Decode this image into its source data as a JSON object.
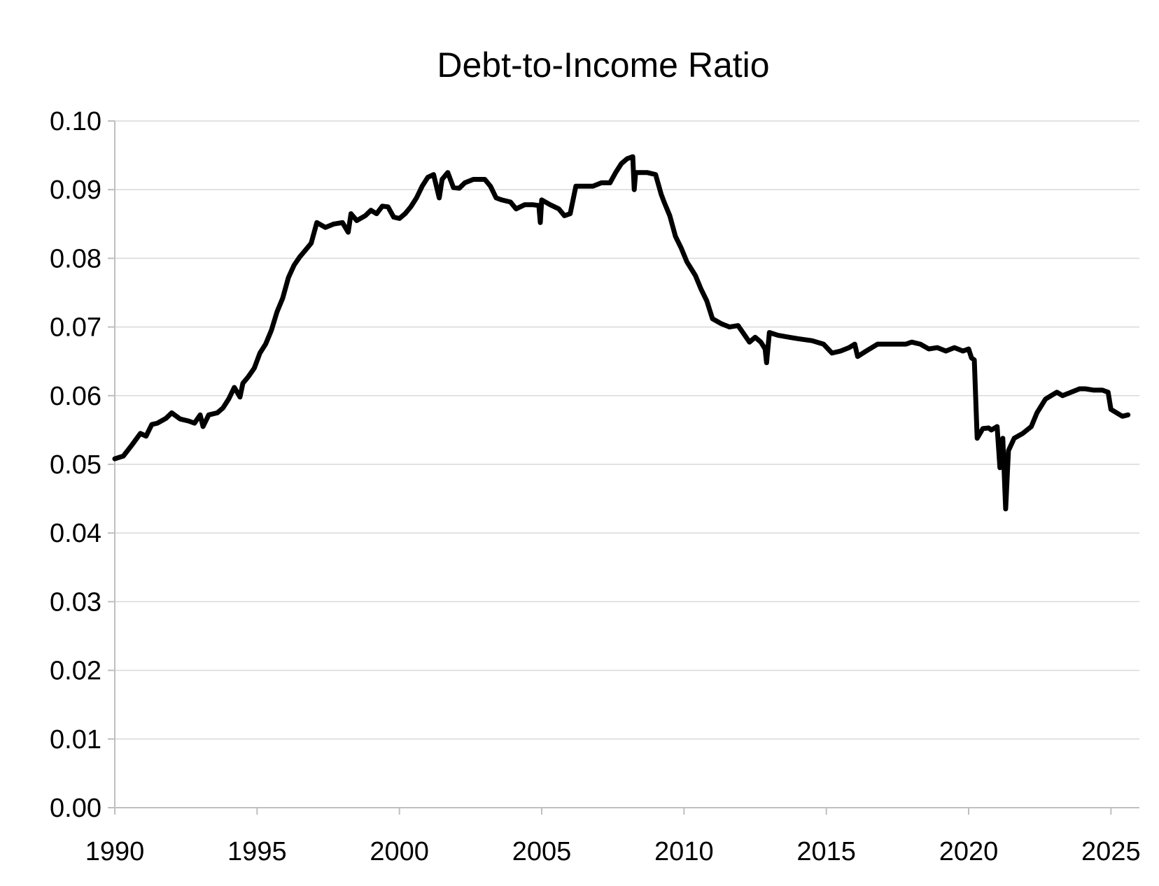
{
  "chart_data": {
    "type": "line",
    "title": "Debt-to-Income Ratio",
    "xlabel": "",
    "ylabel": "",
    "xlim": [
      1990,
      2026
    ],
    "ylim": [
      0,
      0.1
    ],
    "x_ticks": [
      "1990",
      "1995",
      "2000",
      "2005",
      "2010",
      "2015",
      "2020",
      "2025"
    ],
    "x_tick_values": [
      1990,
      1995,
      2000,
      2005,
      2010,
      2015,
      2020,
      2025
    ],
    "y_ticks": [
      "0.00",
      "0.01",
      "0.02",
      "0.03",
      "0.04",
      "0.05",
      "0.06",
      "0.07",
      "0.08",
      "0.09",
      "0.10"
    ],
    "y_tick_values": [
      0.0,
      0.01,
      0.02,
      0.03,
      0.04,
      0.05,
      0.06,
      0.07,
      0.08,
      0.09,
      0.1
    ],
    "grid": "horizontal",
    "legend": "none",
    "colors": {
      "line": "#000000",
      "grid": "#d9d9d9",
      "axis": "#bfbfbf"
    },
    "series": [
      {
        "x": [
          1990.0,
          1990.3,
          1990.6,
          1990.9,
          1991.1,
          1991.3,
          1991.5,
          1991.8,
          1992.0,
          1992.3,
          1992.6,
          1992.8,
          1993.0,
          1993.1,
          1993.3,
          1993.6,
          1993.8,
          1994.0,
          1994.2,
          1994.4,
          1994.5,
          1994.7,
          1994.9,
          1995.1,
          1995.3,
          1995.5,
          1995.7,
          1995.9,
          1996.1,
          1996.3,
          1996.5,
          1996.7,
          1996.9,
          1997.1,
          1997.4,
          1997.7,
          1998.0,
          1998.2,
          1998.3,
          1998.5,
          1998.8,
          1999.0,
          1999.2,
          1999.4,
          1999.6,
          1999.8,
          2000.0,
          2000.2,
          2000.4,
          2000.6,
          2000.8,
          2001.0,
          2001.2,
          2001.4,
          2001.5,
          2001.7,
          2001.9,
          2002.1,
          2002.3,
          2002.6,
          2003.0,
          2003.2,
          2003.4,
          2003.6,
          2003.9,
          2004.1,
          2004.4,
          2004.7,
          2004.9,
          2004.95,
          2005.0,
          2005.3,
          2005.6,
          2005.8,
          2006.0,
          2006.2,
          2006.4,
          2006.8,
          2007.1,
          2007.4,
          2007.6,
          2007.8,
          2008.0,
          2008.2,
          2008.25,
          2008.3,
          2008.5,
          2008.7,
          2009.0,
          2009.2,
          2009.3,
          2009.5,
          2009.7,
          2009.9,
          2010.1,
          2010.4,
          2010.6,
          2010.8,
          2011.0,
          2011.3,
          2011.6,
          2011.9,
          2012.1,
          2012.3,
          2012.5,
          2012.7,
          2012.85,
          2012.9,
          2013.0,
          2013.3,
          2013.7,
          2014.0,
          2014.5,
          2014.9,
          2015.2,
          2015.5,
          2015.8,
          2016.0,
          2016.1,
          2016.4,
          2016.8,
          2017.2,
          2017.5,
          2017.8,
          2018.0,
          2018.3,
          2018.6,
          2018.9,
          2019.2,
          2019.5,
          2019.8,
          2020.0,
          2020.1,
          2020.2,
          2020.3,
          2020.5,
          2020.7,
          2020.8,
          2021.0,
          2021.1,
          2021.2,
          2021.3,
          2021.4,
          2021.6,
          2021.9,
          2022.2,
          2022.4,
          2022.7,
          2022.9,
          2023.1,
          2023.3,
          2023.6,
          2023.9,
          2024.1,
          2024.4,
          2024.7,
          2024.9,
          2025.0,
          2025.2,
          2025.4,
          2025.6
        ],
        "y": [
          0.0508,
          0.0512,
          0.0528,
          0.0545,
          0.0541,
          0.0558,
          0.056,
          0.0567,
          0.0575,
          0.0566,
          0.0563,
          0.056,
          0.0572,
          0.0555,
          0.0572,
          0.0575,
          0.0582,
          0.0595,
          0.0612,
          0.0598,
          0.0618,
          0.0628,
          0.064,
          0.0662,
          0.0675,
          0.0695,
          0.0722,
          0.0742,
          0.0772,
          0.079,
          0.0802,
          0.0812,
          0.0822,
          0.0852,
          0.0845,
          0.085,
          0.0852,
          0.0838,
          0.0865,
          0.0855,
          0.0862,
          0.087,
          0.0865,
          0.0876,
          0.0875,
          0.086,
          0.0858,
          0.0865,
          0.0875,
          0.0888,
          0.0905,
          0.0918,
          0.0922,
          0.0888,
          0.0915,
          0.0925,
          0.0903,
          0.0902,
          0.091,
          0.0915,
          0.0915,
          0.0905,
          0.0888,
          0.0885,
          0.0882,
          0.0872,
          0.0878,
          0.0878,
          0.0877,
          0.0852,
          0.0885,
          0.0878,
          0.0872,
          0.0862,
          0.0865,
          0.0905,
          0.0905,
          0.0905,
          0.091,
          0.091,
          0.0925,
          0.0938,
          0.0945,
          0.0948,
          0.09,
          0.0925,
          0.0925,
          0.0925,
          0.0922,
          0.0893,
          0.0882,
          0.0862,
          0.0832,
          0.0815,
          0.0795,
          0.0775,
          0.0755,
          0.0738,
          0.0712,
          0.0705,
          0.07,
          0.0702,
          0.069,
          0.0678,
          0.0685,
          0.0678,
          0.0668,
          0.0648,
          0.0692,
          0.0688,
          0.0685,
          0.0683,
          0.068,
          0.0675,
          0.0662,
          0.0665,
          0.067,
          0.0675,
          0.0657,
          0.0665,
          0.0675,
          0.0675,
          0.0675,
          0.0675,
          0.0678,
          0.0675,
          0.0668,
          0.067,
          0.0665,
          0.067,
          0.0665,
          0.0668,
          0.0655,
          0.0652,
          0.0538,
          0.0552,
          0.0553,
          0.055,
          0.0555,
          0.0495,
          0.0538,
          0.0435,
          0.052,
          0.0538,
          0.0545,
          0.0555,
          0.0575,
          0.0595,
          0.06,
          0.0605,
          0.06,
          0.0605,
          0.061,
          0.061,
          0.0608,
          0.0608,
          0.0605,
          0.058,
          0.0575,
          0.057,
          0.0572
        ]
      }
    ]
  }
}
